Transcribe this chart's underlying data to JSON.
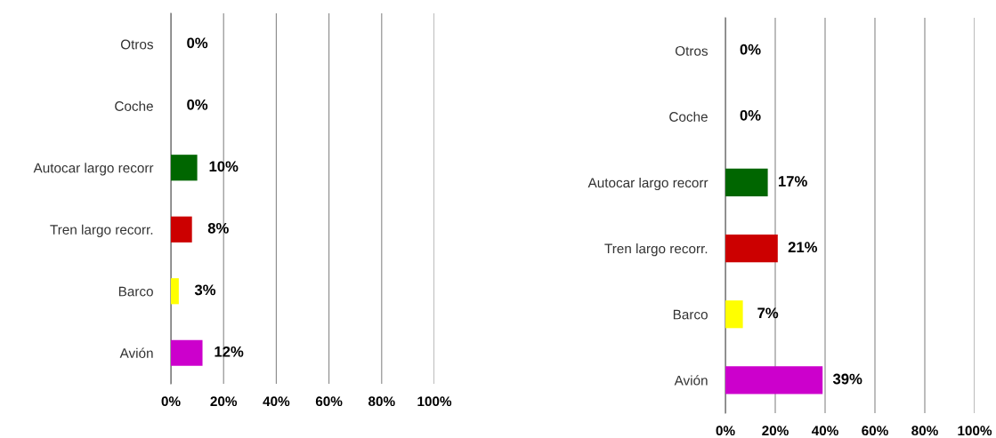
{
  "chart_data": [
    {
      "type": "bar",
      "orientation": "horizontal",
      "categories": [
        "Otros",
        "Coche",
        "Autocar largo recorr",
        "Tren largo recorr.",
        "Barco",
        "Avión"
      ],
      "values": [
        0,
        0,
        10,
        8,
        3,
        12
      ],
      "colors": [
        null,
        null,
        "#006600",
        "#cc0000",
        "#ffff00",
        "#cc00cc"
      ],
      "value_labels": [
        "0%",
        "0%",
        "10%",
        "8%",
        "3%",
        "12%"
      ],
      "xlim": [
        0,
        100
      ],
      "xticks": [
        {
          "value": 0,
          "label": "0%"
        },
        {
          "value": 20,
          "label": "20%"
        },
        {
          "value": 40,
          "label": "40%"
        },
        {
          "value": 60,
          "label": "60%"
        },
        {
          "value": 80,
          "label": "80%"
        },
        {
          "value": 100,
          "label": "100%"
        }
      ],
      "grid": "x"
    },
    {
      "type": "bar",
      "orientation": "horizontal",
      "categories": [
        "Otros",
        "Coche",
        "Autocar largo recorr",
        "Tren largo recorr.",
        "Barco",
        "Avión"
      ],
      "values": [
        0,
        0,
        17,
        21,
        7,
        39
      ],
      "colors": [
        null,
        null,
        "#006600",
        "#cc0000",
        "#ffff00",
        "#cc00cc"
      ],
      "value_labels": [
        "0%",
        "0%",
        "17%",
        "21%",
        "7%",
        "39%"
      ],
      "xlim": [
        0,
        100
      ],
      "xticks": [
        {
          "value": 0,
          "label": "0%"
        },
        {
          "value": 20,
          "label": "20%"
        },
        {
          "value": 40,
          "label": "40%"
        },
        {
          "value": 60,
          "label": "60%"
        },
        {
          "value": 80,
          "label": "80%"
        },
        {
          "value": 100,
          "label": "100%"
        }
      ],
      "grid": "x"
    }
  ]
}
